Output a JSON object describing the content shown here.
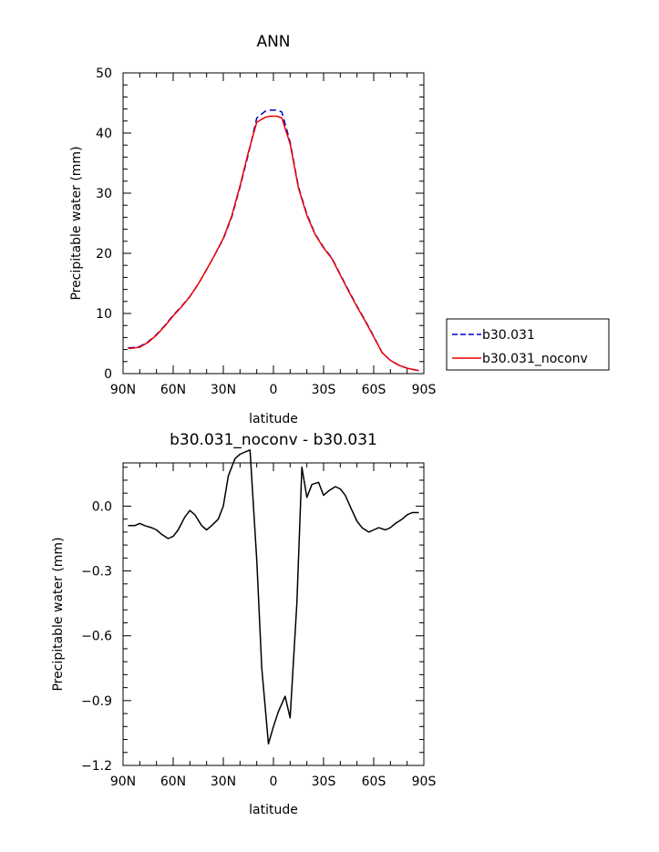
{
  "chart_data": [
    {
      "type": "line",
      "title": "ANN",
      "xlabel": "latitude",
      "ylabel": "Precipitable water (mm)",
      "xlim": [
        90,
        -90
      ],
      "ylim": [
        0,
        50
      ],
      "xticks": [
        90,
        60,
        30,
        0,
        -30,
        -60,
        -90
      ],
      "xtick_labels": [
        "90N",
        "60N",
        "30N",
        "0",
        "30S",
        "60S",
        "90S"
      ],
      "yticks": [
        0,
        10,
        20,
        30,
        40,
        50
      ],
      "ytick_labels": [
        "0",
        "10",
        "20",
        "30",
        "40",
        "50"
      ],
      "legend_position": "right",
      "series": [
        {
          "name": "b30.031",
          "color": "#0000cc",
          "style": "dashed",
          "x": [
            87,
            85,
            80,
            75,
            70,
            65,
            60,
            55,
            50,
            45,
            40,
            35,
            30,
            25,
            20,
            15,
            10,
            5,
            2,
            0,
            -2,
            -5,
            -10,
            -15,
            -20,
            -25,
            -30,
            -35,
            -40,
            -45,
            -50,
            -55,
            -60,
            -65,
            -70,
            -75,
            -80,
            -85,
            -87
          ],
          "y": [
            4.3,
            4.3,
            4.5,
            5.3,
            6.5,
            8.0,
            9.7,
            11.2,
            12.8,
            14.9,
            17.3,
            19.8,
            22.4,
            26.0,
            31.0,
            36.5,
            42.5,
            43.6,
            43.8,
            43.8,
            43.8,
            43.5,
            38.5,
            31.0,
            26.5,
            23.2,
            21.0,
            19.2,
            16.5,
            13.8,
            11.2,
            8.8,
            6.2,
            3.5,
            2.2,
            1.4,
            0.9,
            0.6,
            0.5
          ]
        },
        {
          "name": "b30.031_noconv",
          "color": "#ee0000",
          "style": "solid",
          "x": [
            87,
            85,
            80,
            75,
            70,
            65,
            60,
            55,
            50,
            45,
            40,
            35,
            30,
            25,
            20,
            15,
            10,
            5,
            2,
            0,
            -2,
            -5,
            -10,
            -15,
            -20,
            -25,
            -30,
            -35,
            -40,
            -45,
            -50,
            -55,
            -60,
            -65,
            -70,
            -75,
            -80,
            -85,
            -87
          ],
          "y": [
            4.2,
            4.2,
            4.4,
            5.2,
            6.4,
            7.9,
            9.6,
            11.1,
            12.8,
            14.9,
            17.3,
            19.8,
            22.5,
            26.2,
            31.2,
            36.8,
            41.8,
            42.6,
            42.8,
            42.8,
            42.8,
            42.5,
            38.2,
            30.8,
            26.3,
            23.1,
            20.9,
            19.1,
            16.4,
            13.7,
            11.1,
            8.7,
            6.1,
            3.5,
            2.2,
            1.4,
            0.9,
            0.6,
            0.5
          ]
        }
      ]
    },
    {
      "type": "line",
      "title": "b30.031_noconv - b30.031",
      "xlabel": "latitude",
      "ylabel": "Precipitable water (mm)",
      "xlim": [
        90,
        -90
      ],
      "ylim": [
        -1.2,
        0.2
      ],
      "xticks": [
        90,
        60,
        30,
        0,
        -30,
        -60,
        -90
      ],
      "xtick_labels": [
        "90N",
        "60N",
        "30N",
        "0",
        "30S",
        "60S",
        "90S"
      ],
      "yticks": [
        -1.2,
        -0.9,
        -0.6,
        -0.3,
        0.0
      ],
      "ytick_labels": [
        "-1.2",
        "-0.9",
        "-0.6",
        "-0.3",
        "0.0"
      ],
      "series": [
        {
          "color": "#000000",
          "style": "solid",
          "x": [
            87,
            83,
            80,
            77,
            73,
            70,
            67,
            63,
            60,
            57,
            53,
            50,
            47,
            43,
            40,
            37,
            33,
            30,
            27,
            23,
            20,
            17,
            14,
            10,
            7,
            3,
            0,
            -3,
            -7,
            -10,
            -14,
            -17,
            -20,
            -23,
            -27,
            -30,
            -33,
            -37,
            -40,
            -43,
            -47,
            -50,
            -53,
            -57,
            -60,
            -63,
            -67,
            -70,
            -73,
            -77,
            -80,
            -83,
            -87
          ],
          "y": [
            -0.09,
            -0.09,
            -0.08,
            -0.09,
            -0.1,
            -0.11,
            -0.13,
            -0.15,
            -0.14,
            -0.11,
            -0.05,
            -0.02,
            -0.04,
            -0.09,
            -0.11,
            -0.09,
            -0.06,
            0.0,
            0.14,
            0.22,
            0.24,
            0.25,
            0.26,
            -0.25,
            -0.75,
            -1.1,
            -1.02,
            -0.95,
            -0.88,
            -0.98,
            -0.45,
            0.18,
            0.04,
            0.1,
            0.11,
            0.05,
            0.07,
            0.09,
            0.08,
            0.05,
            -0.02,
            -0.07,
            -0.1,
            -0.12,
            -0.11,
            -0.1,
            -0.11,
            -0.1,
            -0.08,
            -0.06,
            -0.04,
            -0.03,
            -0.03
          ]
        }
      ]
    }
  ]
}
